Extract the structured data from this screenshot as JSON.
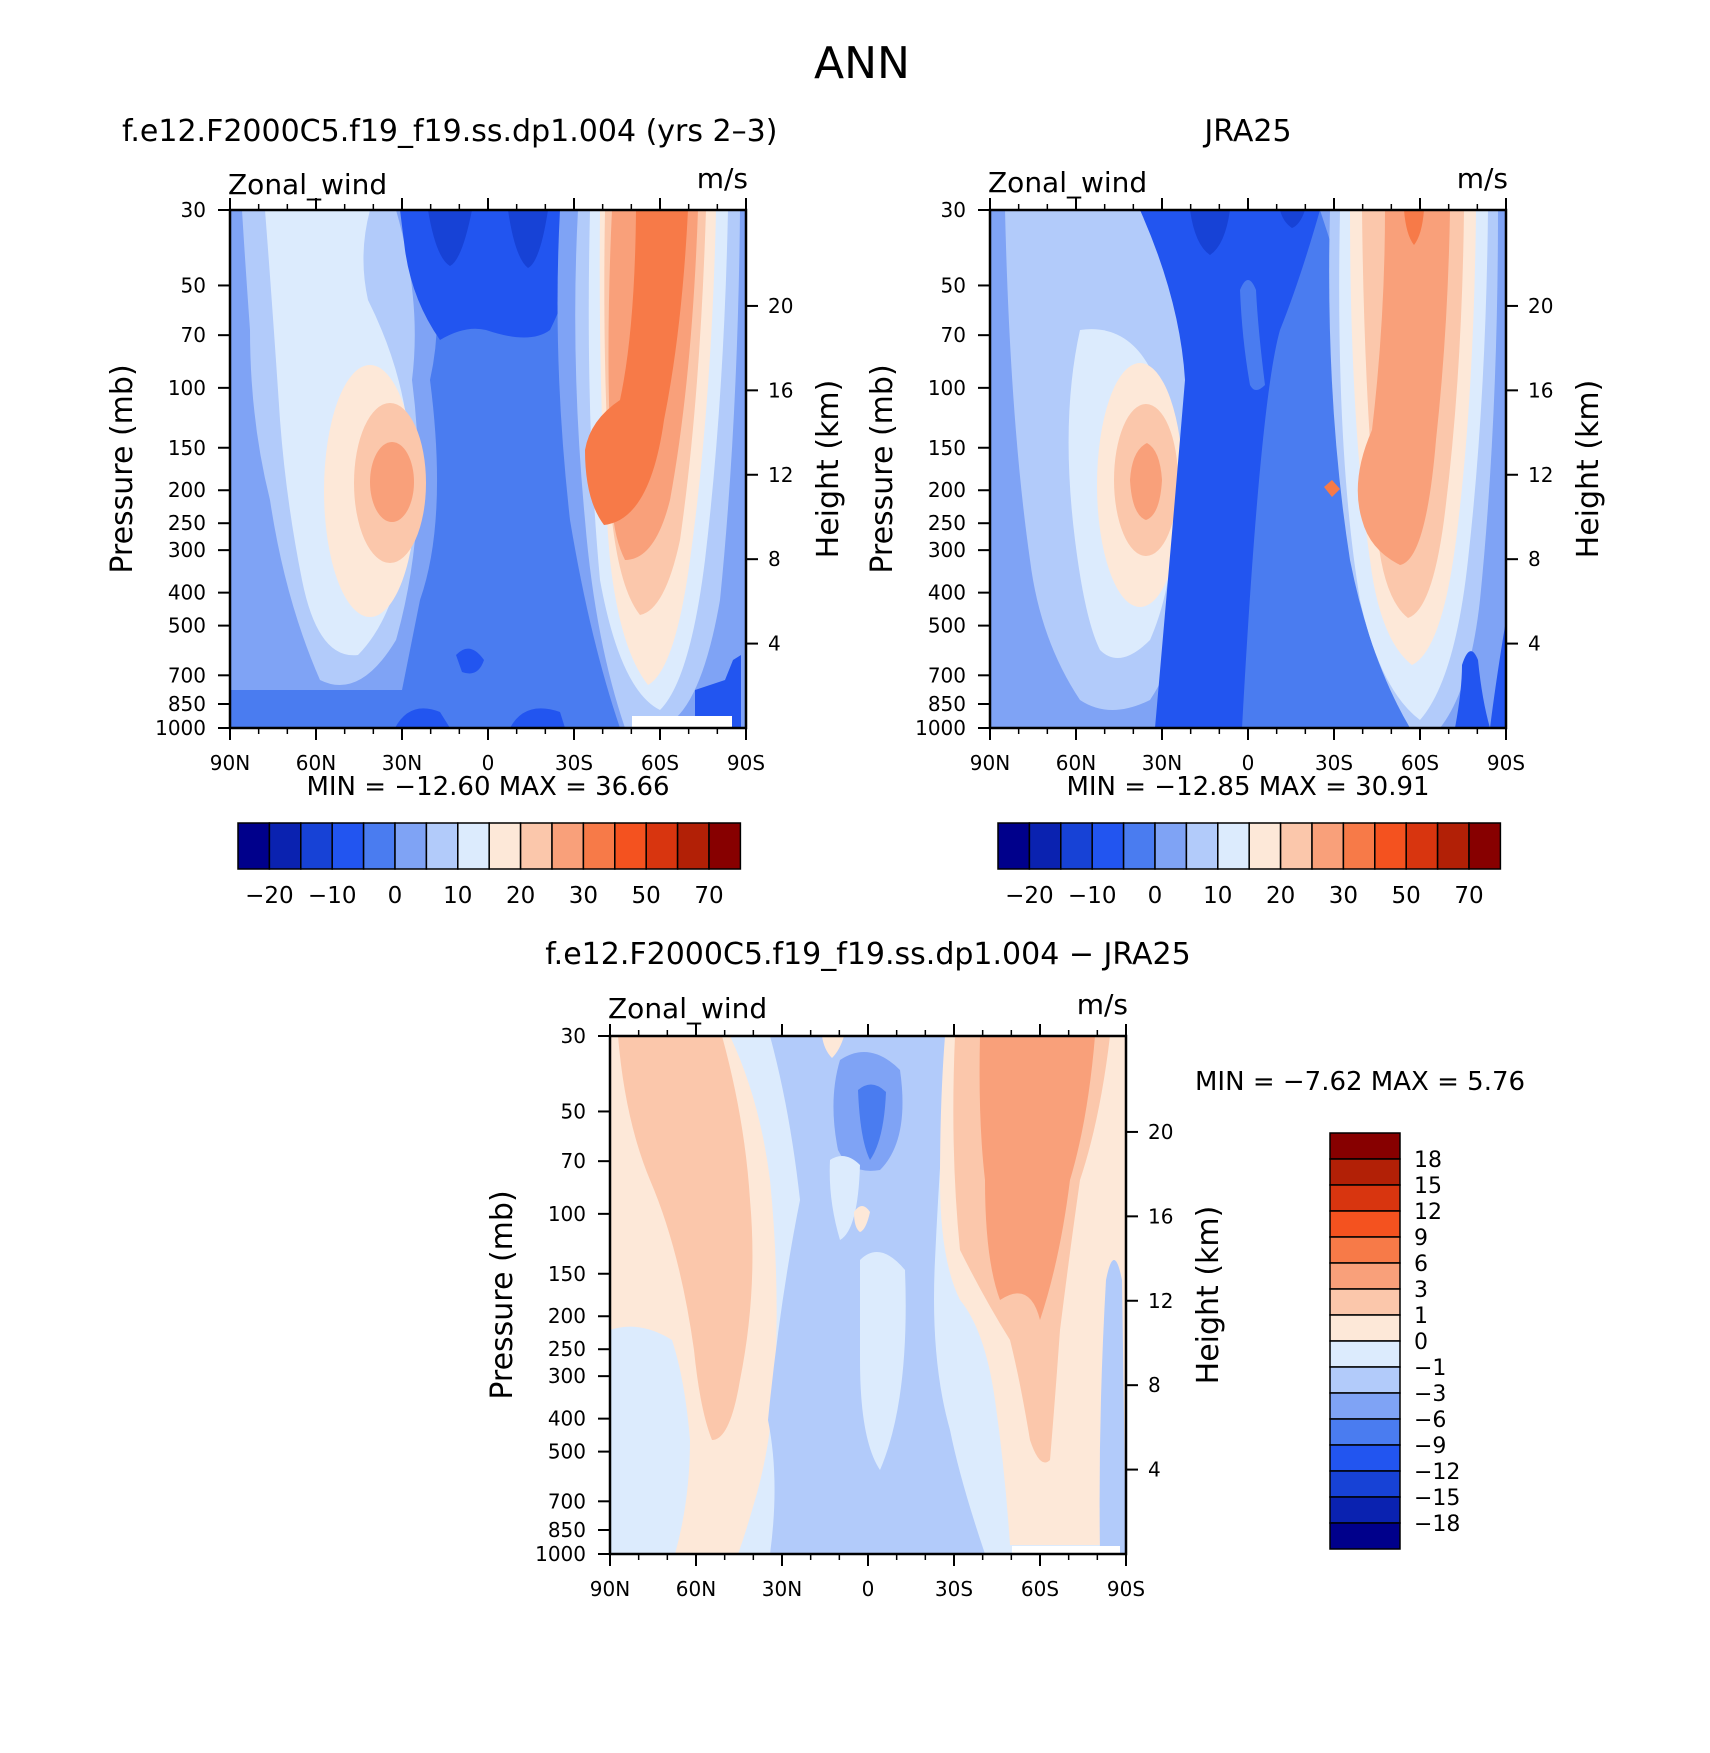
{
  "page": {
    "title": "ANN"
  },
  "panels": [
    {
      "title": "f.e12.F2000C5.f19_f19.ss.dp1.004 (yrs 2–3)",
      "variable": "Zonal_wind",
      "units": "m/s",
      "ylabel_left": "Pressure (mb)",
      "ylabel_right": "Height (km)",
      "min_max": "MIN = −12.60   MAX =   36.66"
    },
    {
      "title": "JRA25",
      "variable": "Zonal_wind",
      "units": "m/s",
      "ylabel_left": "Pressure (mb)",
      "ylabel_right": "Height (km)",
      "min_max": "MIN = −12.85   MAX =   30.91"
    },
    {
      "title": "f.e12.F2000C5.f19_f19.ss.dp1.004 − JRA25",
      "variable": "Zonal_wind",
      "units": "m/s",
      "ylabel_left": "Pressure (mb)",
      "ylabel_right": "Height (km)",
      "min_max": "MIN =   −7.62   MAX =    5.76"
    }
  ],
  "axes": {
    "x_ticks": [
      "90N",
      "60N",
      "30N",
      "0",
      "30S",
      "60S",
      "90S"
    ],
    "p_ticks": [
      "30",
      "50",
      "70",
      "100",
      "150",
      "200",
      "250",
      "300",
      "400",
      "500",
      "700",
      "850",
      "1000"
    ],
    "h_ticks": [
      "4",
      "8",
      "12",
      "16",
      "20"
    ]
  },
  "colorbars": {
    "main": {
      "labels": [
        "−20",
        "−10",
        "0",
        "10",
        "20",
        "30",
        "50",
        "70"
      ],
      "colors": [
        "#00008b",
        "#0a22b0",
        "#1742d6",
        "#2255f0",
        "#4a7cf0",
        "#7fa3f5",
        "#b2cbfa",
        "#dcebfd",
        "#fde8d8",
        "#fbc7ab",
        "#f9a07a",
        "#f77a48",
        "#f4521f",
        "#d8350f",
        "#b22006",
        "#870000"
      ]
    },
    "diff": {
      "labels": [
        "18",
        "15",
        "12",
        "9",
        "6",
        "3",
        "1",
        "0",
        "−1",
        "−3",
        "−6",
        "−9",
        "−12",
        "−15",
        "−18"
      ],
      "colors": [
        "#870000",
        "#b22006",
        "#d8350f",
        "#f4521f",
        "#f77a48",
        "#f9a07a",
        "#fbc7ab",
        "#fde8d8",
        "#dcebfd",
        "#b2cbfa",
        "#7fa3f5",
        "#4a7cf0",
        "#2255f0",
        "#1742d6",
        "#0a22b0",
        "#00008b"
      ]
    }
  },
  "chart_data": [
    {
      "type": "heatmap",
      "title": "f.e12.F2000C5.f19_f19.ss.dp1.004 (yrs 2–3)",
      "xlabel": "",
      "ylabel": "Pressure (mb)",
      "x_range": [
        "90N",
        "90S"
      ],
      "y_range_mb": [
        1000,
        30
      ],
      "y_scale": "log",
      "contour_levels": [
        -25,
        -20,
        -15,
        -10,
        -5,
        0,
        5,
        10,
        15,
        20,
        25,
        30,
        40,
        50,
        60,
        70
      ],
      "min": -12.6,
      "max": 36.66
    },
    {
      "type": "heatmap",
      "title": "JRA25",
      "xlabel": "",
      "ylabel": "Pressure (mb)",
      "x_range": [
        "90N",
        "90S"
      ],
      "y_range_mb": [
        1000,
        30
      ],
      "y_scale": "log",
      "contour_levels": [
        -25,
        -20,
        -15,
        -10,
        -5,
        0,
        5,
        10,
        15,
        20,
        25,
        30,
        40,
        50,
        60,
        70
      ],
      "min": -12.85,
      "max": 30.91
    },
    {
      "type": "heatmap",
      "title": "f.e12.F2000C5.f19_f19.ss.dp1.004 − JRA25",
      "xlabel": "",
      "ylabel": "Pressure (mb)",
      "x_range": [
        "90N",
        "90S"
      ],
      "y_range_mb": [
        1000,
        30
      ],
      "y_scale": "log",
      "contour_levels": [
        -18,
        -15,
        -12,
        -9,
        -6,
        -3,
        -1,
        0,
        1,
        3,
        6,
        9,
        12,
        15,
        18
      ],
      "min": -7.62,
      "max": 5.76
    }
  ]
}
